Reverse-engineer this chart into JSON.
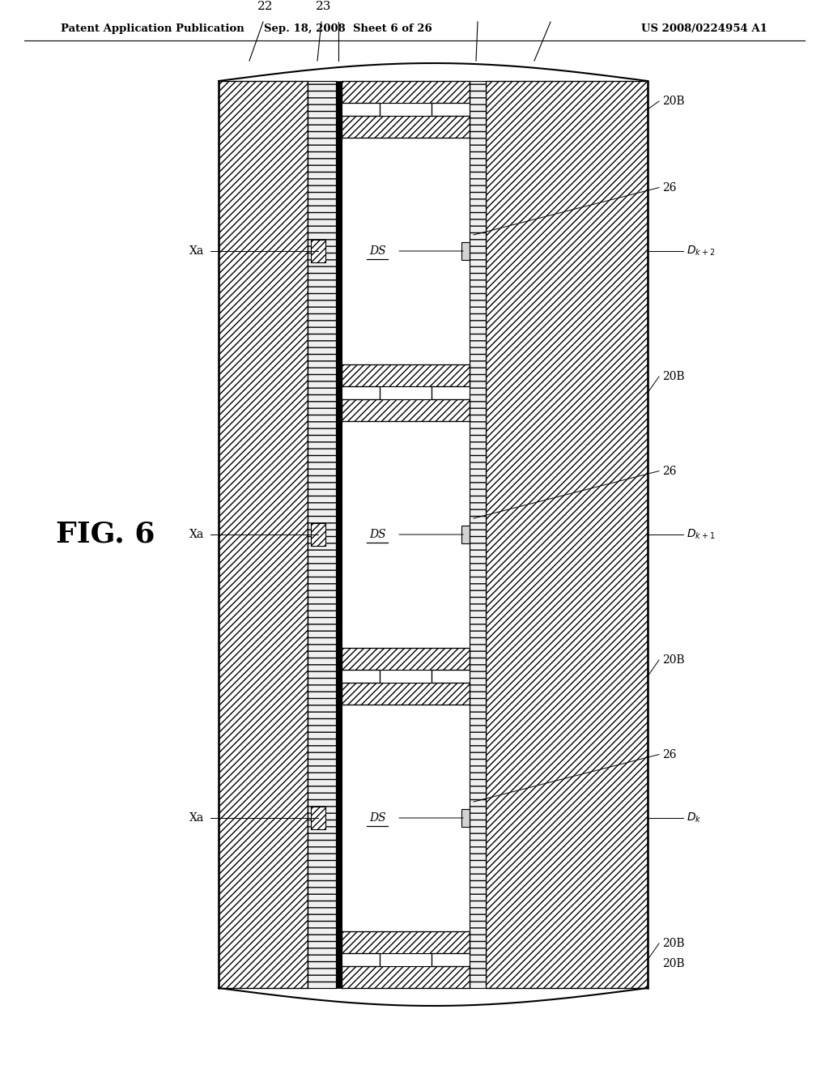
{
  "title_left": "Patent Application Publication",
  "title_mid": "Sep. 18, 2008  Sheet 6 of 26",
  "title_right": "US 2008/0224954 A1",
  "fig_label": "FIG. 6",
  "background_color": "#ffffff",
  "line_color": "#000000",
  "layer_22_hatch": "////",
  "layer_23_hatch": "----",
  "layer_24_hatch": "////",
  "rib_hatch": "////",
  "xa_hatch": "////",
  "addr_hatch": "////",
  "n_cells": 3,
  "n_ribs": 4
}
